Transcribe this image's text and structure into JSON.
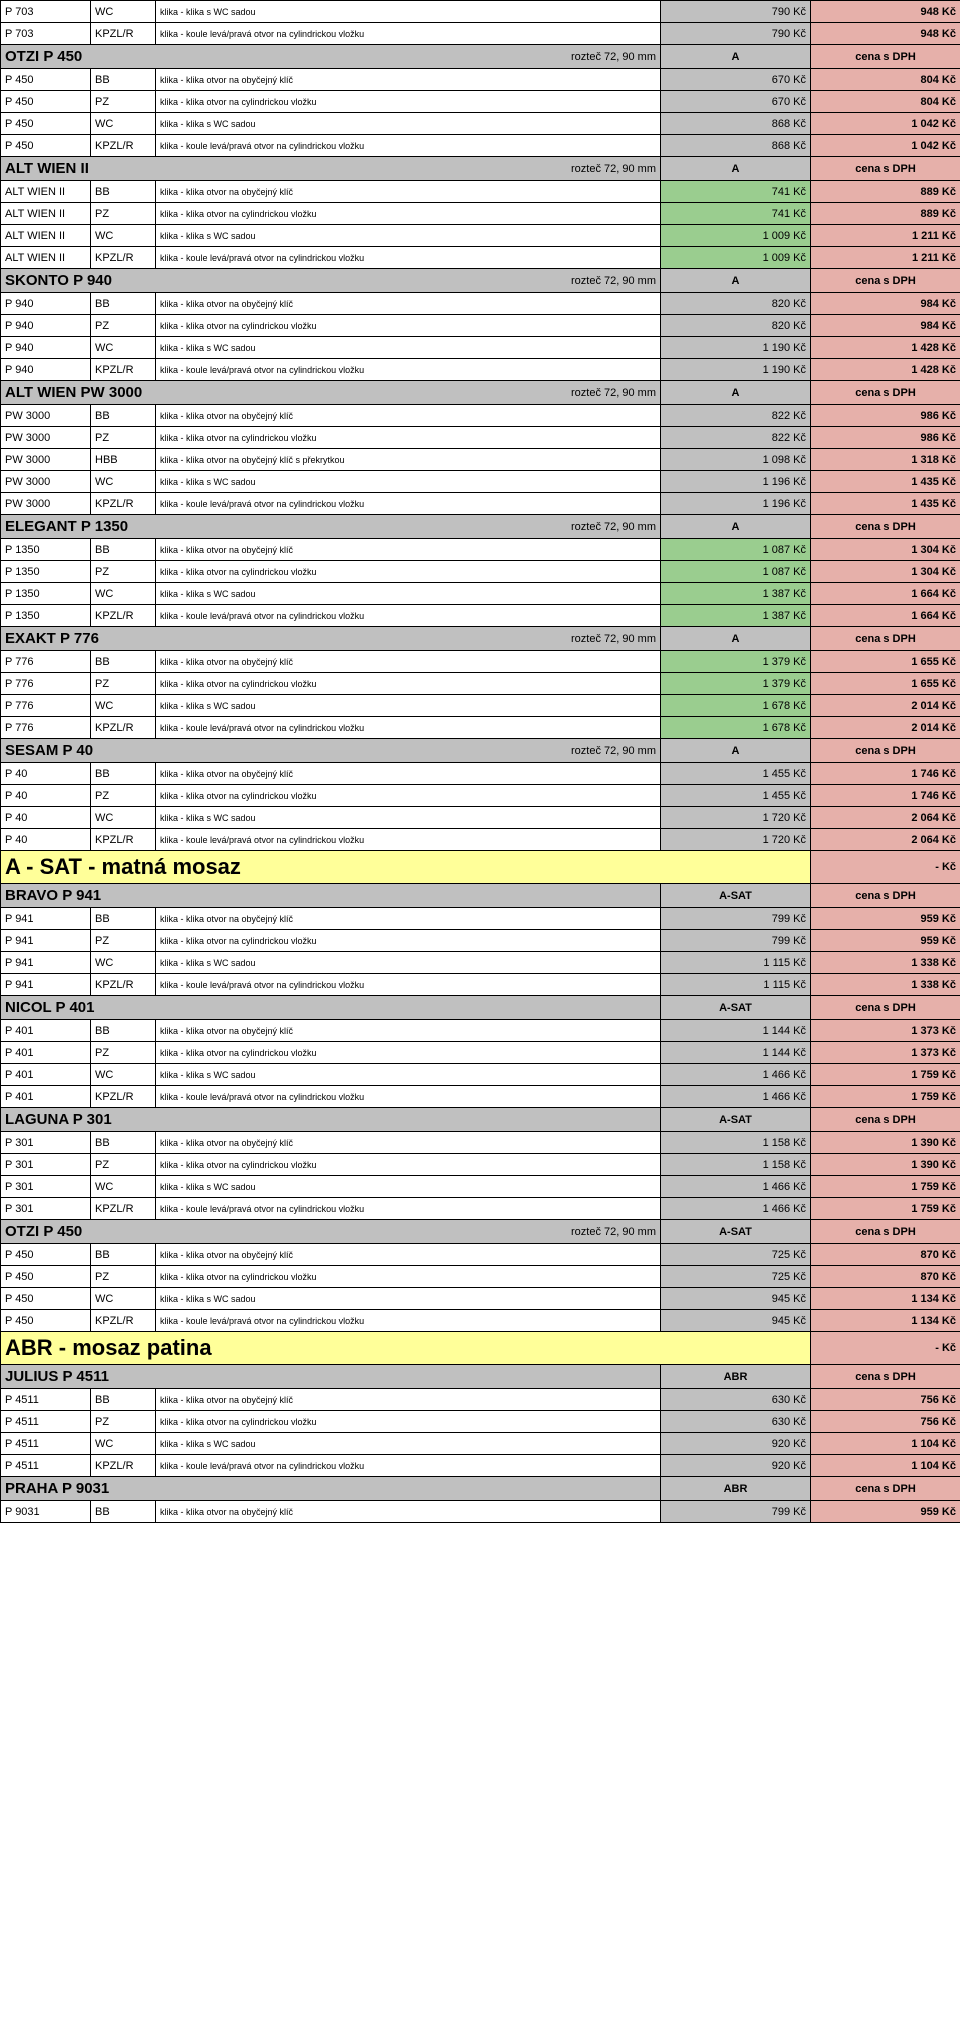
{
  "colors": {
    "pink": "#e6b0aa",
    "grey": "#c0c0c0",
    "green": "#9acd8f",
    "yellow": "#ffff99",
    "white": "#ffffff"
  },
  "desc": {
    "bb": "klika - klika otvor na obyčejný klíč",
    "pz": "klika - klika otvor na cylindrickou vložku",
    "wc": "klika - klika s WC sadou",
    "kpzlr": "klika - koule levá/pravá otvor na cylindrickou vložku",
    "hbb": "klika - klika otvor na obyčejný klíč s překrytkou"
  },
  "labels": {
    "roztec": "rozteč 72, 90 mm",
    "A": "A",
    "ASAT": "A-SAT",
    "ABR": "ABR",
    "cenasDPH": "cena s DPH",
    "dashKc": "-    Kč"
  },
  "rows": [
    {
      "t": "data",
      "code": "P 703",
      "v": "WC",
      "d": "wc",
      "p1": "790 Kč",
      "p2": "948 Kč",
      "c1": "grey",
      "c2": "pink"
    },
    {
      "t": "data",
      "code": "P 703",
      "v": "KPZL/R",
      "d": "kpzlr",
      "p1": "790 Kč",
      "p2": "948 Kč",
      "c1": "grey",
      "c2": "pink"
    },
    {
      "t": "hdr",
      "title": "OTZI P 450",
      "sub": "roztec",
      "p1": "A",
      "c1": "grey",
      "c2": "pink"
    },
    {
      "t": "data",
      "code": "P 450",
      "v": "BB",
      "d": "bb",
      "p1": "670 Kč",
      "p2": "804 Kč",
      "c1": "grey",
      "c2": "pink"
    },
    {
      "t": "data",
      "code": "P 450",
      "v": "PZ",
      "d": "pz",
      "p1": "670 Kč",
      "p2": "804 Kč",
      "c1": "grey",
      "c2": "pink"
    },
    {
      "t": "data",
      "code": "P 450",
      "v": "WC",
      "d": "wc",
      "p1": "868 Kč",
      "p2": "1 042 Kč",
      "c1": "grey",
      "c2": "pink"
    },
    {
      "t": "data",
      "code": "P 450",
      "v": "KPZL/R",
      "d": "kpzlr",
      "p1": "868 Kč",
      "p2": "1 042 Kč",
      "c1": "grey",
      "c2": "pink"
    },
    {
      "t": "hdr",
      "title": "ALT WIEN II",
      "sub": "roztec",
      "p1": "A",
      "c1": "grey",
      "c2": "pink"
    },
    {
      "t": "data",
      "code": "ALT WIEN II",
      "v": "BB",
      "d": "bb",
      "p1": "741 Kč",
      "p2": "889 Kč",
      "c1": "green",
      "c2": "pink"
    },
    {
      "t": "data",
      "code": "ALT WIEN II",
      "v": "PZ",
      "d": "pz",
      "p1": "741 Kč",
      "p2": "889 Kč",
      "c1": "green",
      "c2": "pink"
    },
    {
      "t": "data",
      "code": "ALT WIEN II",
      "v": "WC",
      "d": "wc",
      "p1": "1 009 Kč",
      "p2": "1 211 Kč",
      "c1": "green",
      "c2": "pink"
    },
    {
      "t": "data",
      "code": "ALT WIEN II",
      "v": "KPZL/R",
      "d": "kpzlr",
      "p1": "1 009 Kč",
      "p2": "1 211 Kč",
      "c1": "green",
      "c2": "pink"
    },
    {
      "t": "hdr",
      "title": "SKONTO P 940",
      "sub": "roztec",
      "p1": "A",
      "c1": "grey",
      "c2": "pink"
    },
    {
      "t": "data",
      "code": "P 940",
      "v": "BB",
      "d": "bb",
      "p1": "820 Kč",
      "p2": "984 Kč",
      "c1": "grey",
      "c2": "pink"
    },
    {
      "t": "data",
      "code": "P 940",
      "v": "PZ",
      "d": "pz",
      "p1": "820 Kč",
      "p2": "984 Kč",
      "c1": "grey",
      "c2": "pink"
    },
    {
      "t": "data",
      "code": "P 940",
      "v": "WC",
      "d": "wc",
      "p1": "1 190 Kč",
      "p2": "1 428 Kč",
      "c1": "grey",
      "c2": "pink"
    },
    {
      "t": "data",
      "code": "P 940",
      "v": "KPZL/R",
      "d": "kpzlr",
      "p1": "1 190 Kč",
      "p2": "1 428 Kč",
      "c1": "grey",
      "c2": "pink"
    },
    {
      "t": "hdr",
      "title": "ALT WIEN PW 3000",
      "sub": "roztec",
      "p1": "A",
      "c1": "grey",
      "c2": "pink"
    },
    {
      "t": "data",
      "code": "PW 3000",
      "v": "BB",
      "d": "bb",
      "p1": "822 Kč",
      "p2": "986 Kč",
      "c1": "grey",
      "c2": "pink"
    },
    {
      "t": "data",
      "code": "PW 3000",
      "v": "PZ",
      "d": "pz",
      "p1": "822 Kč",
      "p2": "986 Kč",
      "c1": "grey",
      "c2": "pink"
    },
    {
      "t": "data",
      "code": "PW 3000",
      "v": "HBB",
      "d": "hbb",
      "p1": "1 098 Kč",
      "p2": "1 318 Kč",
      "c1": "grey",
      "c2": "pink"
    },
    {
      "t": "data",
      "code": "PW 3000",
      "v": "WC",
      "d": "wc",
      "p1": "1 196 Kč",
      "p2": "1 435 Kč",
      "c1": "grey",
      "c2": "pink"
    },
    {
      "t": "data",
      "code": "PW 3000",
      "v": "KPZL/R",
      "d": "kpzlr",
      "p1": "1 196 Kč",
      "p2": "1 435 Kč",
      "c1": "grey",
      "c2": "pink"
    },
    {
      "t": "hdr",
      "title": "ELEGANT P 1350",
      "sub": "roztec",
      "p1": "A",
      "c1": "grey",
      "c2": "pink"
    },
    {
      "t": "data",
      "code": "P 1350",
      "v": "BB",
      "d": "bb",
      "p1": "1 087 Kč",
      "p2": "1 304 Kč",
      "c1": "green",
      "c2": "pink"
    },
    {
      "t": "data",
      "code": "P 1350",
      "v": "PZ",
      "d": "pz",
      "p1": "1 087 Kč",
      "p2": "1 304 Kč",
      "c1": "green",
      "c2": "pink"
    },
    {
      "t": "data",
      "code": "P 1350",
      "v": "WC",
      "d": "wc",
      "p1": "1 387 Kč",
      "p2": "1 664 Kč",
      "c1": "green",
      "c2": "pink"
    },
    {
      "t": "data",
      "code": "P 1350",
      "v": "KPZL/R",
      "d": "kpzlr",
      "p1": "1 387 Kč",
      "p2": "1 664 Kč",
      "c1": "green",
      "c2": "pink"
    },
    {
      "t": "hdr",
      "title": "EXAKT P 776",
      "sub": "roztec",
      "p1": "A",
      "c1": "grey",
      "c2": "pink"
    },
    {
      "t": "data",
      "code": "P 776",
      "v": "BB",
      "d": "bb",
      "p1": "1 379 Kč",
      "p2": "1 655 Kč",
      "c1": "green",
      "c2": "pink"
    },
    {
      "t": "data",
      "code": "P 776",
      "v": "PZ",
      "d": "pz",
      "p1": "1 379 Kč",
      "p2": "1 655 Kč",
      "c1": "green",
      "c2": "pink"
    },
    {
      "t": "data",
      "code": "P 776",
      "v": "WC",
      "d": "wc",
      "p1": "1 678 Kč",
      "p2": "2 014 Kč",
      "c1": "green",
      "c2": "pink"
    },
    {
      "t": "data",
      "code": "P 776",
      "v": "KPZL/R",
      "d": "kpzlr",
      "p1": "1 678 Kč",
      "p2": "2 014 Kč",
      "c1": "green",
      "c2": "pink"
    },
    {
      "t": "hdr",
      "title": "SESAM P 40",
      "sub": "roztec",
      "p1": "A",
      "c1": "grey",
      "c2": "pink"
    },
    {
      "t": "data",
      "code": "P 40",
      "v": "BB",
      "d": "bb",
      "p1": "1 455 Kč",
      "p2": "1 746 Kč",
      "c1": "grey",
      "c2": "pink"
    },
    {
      "t": "data",
      "code": "P 40",
      "v": "PZ",
      "d": "pz",
      "p1": "1 455 Kč",
      "p2": "1 746 Kč",
      "c1": "grey",
      "c2": "pink"
    },
    {
      "t": "data",
      "code": "P 40",
      "v": "WC",
      "d": "wc",
      "p1": "1 720 Kč",
      "p2": "2 064 Kč",
      "c1": "grey",
      "c2": "pink"
    },
    {
      "t": "data",
      "code": "P 40",
      "v": "KPZL/R",
      "d": "kpzlr",
      "p1": "1 720 Kč",
      "p2": "2 064 Kč",
      "c1": "grey",
      "c2": "pink"
    },
    {
      "t": "big",
      "title": "A - SAT - matná mosaz",
      "c": "yellow",
      "p2": "dashKc",
      "c2": "pink"
    },
    {
      "t": "hdr",
      "title": "BRAVO P 941",
      "sub": "",
      "p1": "ASAT",
      "c1": "grey",
      "c2": "pink"
    },
    {
      "t": "data",
      "code": "P 941",
      "v": "BB",
      "d": "bb",
      "p1": "799 Kč",
      "p2": "959 Kč",
      "c1": "grey",
      "c2": "pink"
    },
    {
      "t": "data",
      "code": "P 941",
      "v": "PZ",
      "d": "pz",
      "p1": "799 Kč",
      "p2": "959 Kč",
      "c1": "grey",
      "c2": "pink"
    },
    {
      "t": "data",
      "code": "P 941",
      "v": "WC",
      "d": "wc",
      "p1": "1 115 Kč",
      "p2": "1 338 Kč",
      "c1": "grey",
      "c2": "pink"
    },
    {
      "t": "data",
      "code": "P 941",
      "v": "KPZL/R",
      "d": "kpzlr",
      "p1": "1 115 Kč",
      "p2": "1 338 Kč",
      "c1": "grey",
      "c2": "pink"
    },
    {
      "t": "hdr",
      "title": "NICOL P 401",
      "sub": "",
      "p1": "ASAT",
      "c1": "grey",
      "c2": "pink"
    },
    {
      "t": "data",
      "code": "P 401",
      "v": "BB",
      "d": "bb",
      "p1": "1 144 Kč",
      "p2": "1 373 Kč",
      "c1": "grey",
      "c2": "pink"
    },
    {
      "t": "data",
      "code": "P 401",
      "v": "PZ",
      "d": "pz",
      "p1": "1 144 Kč",
      "p2": "1 373 Kč",
      "c1": "grey",
      "c2": "pink"
    },
    {
      "t": "data",
      "code": "P 401",
      "v": "WC",
      "d": "wc",
      "p1": "1 466 Kč",
      "p2": "1 759 Kč",
      "c1": "grey",
      "c2": "pink"
    },
    {
      "t": "data",
      "code": "P 401",
      "v": "KPZL/R",
      "d": "kpzlr",
      "p1": "1 466 Kč",
      "p2": "1 759 Kč",
      "c1": "grey",
      "c2": "pink"
    },
    {
      "t": "hdr",
      "title": "LAGUNA P 301",
      "sub": "",
      "p1": "ASAT",
      "c1": "grey",
      "c2": "pink"
    },
    {
      "t": "data",
      "code": "P 301",
      "v": "BB",
      "d": "bb",
      "p1": "1 158 Kč",
      "p2": "1 390 Kč",
      "c1": "grey",
      "c2": "pink"
    },
    {
      "t": "data",
      "code": "P 301",
      "v": "PZ",
      "d": "pz",
      "p1": "1 158 Kč",
      "p2": "1 390 Kč",
      "c1": "grey",
      "c2": "pink"
    },
    {
      "t": "data",
      "code": "P 301",
      "v": "WC",
      "d": "wc",
      "p1": "1 466 Kč",
      "p2": "1 759 Kč",
      "c1": "grey",
      "c2": "pink"
    },
    {
      "t": "data",
      "code": "P 301",
      "v": "KPZL/R",
      "d": "kpzlr",
      "p1": "1 466 Kč",
      "p2": "1 759 Kč",
      "c1": "grey",
      "c2": "pink"
    },
    {
      "t": "hdr",
      "title": "OTZI P 450",
      "sub": "roztec",
      "p1": "ASAT",
      "c1": "grey",
      "c2": "pink"
    },
    {
      "t": "data",
      "code": "P 450",
      "v": "BB",
      "d": "bb",
      "p1": "725 Kč",
      "p2": "870 Kč",
      "c1": "grey",
      "c2": "pink"
    },
    {
      "t": "data",
      "code": "P 450",
      "v": "PZ",
      "d": "pz",
      "p1": "725 Kč",
      "p2": "870 Kč",
      "c1": "grey",
      "c2": "pink"
    },
    {
      "t": "data",
      "code": "P 450",
      "v": "WC",
      "d": "wc",
      "p1": "945 Kč",
      "p2": "1 134 Kč",
      "c1": "grey",
      "c2": "pink"
    },
    {
      "t": "data",
      "code": "P 450",
      "v": "KPZL/R",
      "d": "kpzlr",
      "p1": "945 Kč",
      "p2": "1 134 Kč",
      "c1": "grey",
      "c2": "pink"
    },
    {
      "t": "big",
      "title": "ABR - mosaz patina",
      "c": "yellow",
      "p2": "dashKc",
      "c2": "pink"
    },
    {
      "t": "hdr",
      "title": "JULIUS P 4511",
      "sub": "",
      "p1": "ABR",
      "c1": "grey",
      "c2": "pink"
    },
    {
      "t": "data",
      "code": "P 4511",
      "v": "BB",
      "d": "bb",
      "p1": "630 Kč",
      "p2": "756 Kč",
      "c1": "grey",
      "c2": "pink"
    },
    {
      "t": "data",
      "code": "P 4511",
      "v": "PZ",
      "d": "pz",
      "p1": "630 Kč",
      "p2": "756 Kč",
      "c1": "grey",
      "c2": "pink"
    },
    {
      "t": "data",
      "code": "P 4511",
      "v": "WC",
      "d": "wc",
      "p1": "920 Kč",
      "p2": "1 104 Kč",
      "c1": "grey",
      "c2": "pink"
    },
    {
      "t": "data",
      "code": "P 4511",
      "v": "KPZL/R",
      "d": "kpzlr",
      "p1": "920 Kč",
      "p2": "1 104 Kč",
      "c1": "grey",
      "c2": "pink"
    },
    {
      "t": "hdr",
      "title": "PRAHA P 9031",
      "sub": "",
      "p1": "ABR",
      "c1": "grey",
      "c2": "pink"
    },
    {
      "t": "data",
      "code": "P 9031",
      "v": "BB",
      "d": "bb",
      "p1": "799 Kč",
      "p2": "959 Kč",
      "c1": "grey",
      "c2": "pink"
    }
  ]
}
